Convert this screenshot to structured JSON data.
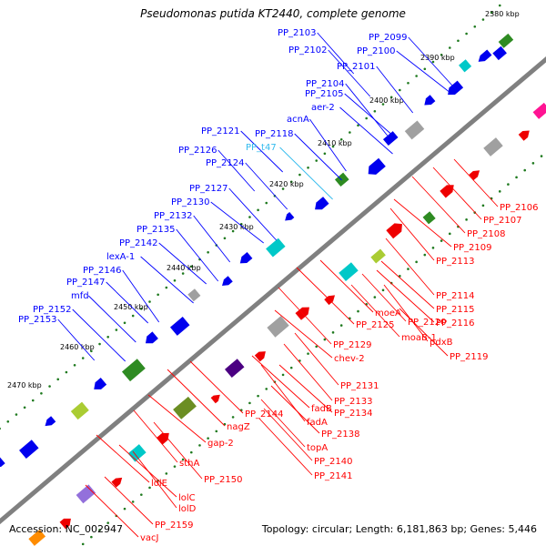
{
  "title": "Pseudomonas putida KT2440, complete genome",
  "accession_line": "Accession: NC_002947",
  "stats_line": "Topology: circular; Length: 6,181,863 bp; Genes: 5,446",
  "colors": {
    "backbone": "#808080",
    "upper_label": "#0000ff",
    "upper_label_alt": "#33bbee",
    "lower_label": "#ff0000",
    "tick_dot": "#1f7a1f",
    "forward_cds": "#0000ee",
    "reverse_cds": "#ee0000"
  },
  "ticks": [
    "2380 kbp",
    "2390 kbp",
    "2400 kbp",
    "2410 kbp",
    "2420 kbp",
    "2430 kbp",
    "2440 kbp",
    "2450 kbp",
    "2460 kbp",
    "2470 kbp"
  ],
  "upper_labels": [
    {
      "text": "PP_2103",
      "color": "blue"
    },
    {
      "text": "PP_2102",
      "color": "blue"
    },
    {
      "text": "PP_2099",
      "color": "blue"
    },
    {
      "text": "PP_2100",
      "color": "blue"
    },
    {
      "text": "PP_2101",
      "color": "blue"
    },
    {
      "text": "PP_2104",
      "color": "blue"
    },
    {
      "text": "PP_2105",
      "color": "blue"
    },
    {
      "text": "aer-2",
      "color": "blue"
    },
    {
      "text": "acnA",
      "color": "blue"
    },
    {
      "text": "PP_2121",
      "color": "blue"
    },
    {
      "text": "PP_2118",
      "color": "blue"
    },
    {
      "text": "PP_t47",
      "color": "cyan"
    },
    {
      "text": "PP_2126",
      "color": "blue"
    },
    {
      "text": "PP_2124",
      "color": "blue"
    },
    {
      "text": "PP_2127",
      "color": "blue"
    },
    {
      "text": "PP_2130",
      "color": "blue"
    },
    {
      "text": "PP_2132",
      "color": "blue"
    },
    {
      "text": "PP_2135",
      "color": "blue"
    },
    {
      "text": "PP_2142",
      "color": "blue"
    },
    {
      "text": "lexA-1",
      "color": "blue"
    },
    {
      "text": "PP_2146",
      "color": "blue"
    },
    {
      "text": "PP_2147",
      "color": "blue"
    },
    {
      "text": "mfd",
      "color": "blue"
    },
    {
      "text": "PP_2152",
      "color": "blue"
    },
    {
      "text": "PP_2153",
      "color": "blue"
    }
  ],
  "lower_labels": [
    "PP_2106",
    "PP_2107",
    "PP_2108",
    "PP_2109",
    "PP_2113",
    "PP_2114",
    "PP_2115",
    "PP_2116",
    "pdxB",
    "PP_2119",
    "moeA",
    "PP_2125",
    "PP_2120",
    "moaB-1",
    "PP_2129",
    "chev-2",
    "PP_2131",
    "PP_2133",
    "PP_2134",
    "fadB",
    "fadA",
    "PP_2138",
    "PP_2144",
    "nagZ",
    "topA",
    "PP_2140",
    "PP_2141",
    "gap-2",
    "sthA",
    "PP_2150",
    "lolE",
    "lolC",
    "lolD",
    "PP_2159",
    "vacJ"
  ]
}
